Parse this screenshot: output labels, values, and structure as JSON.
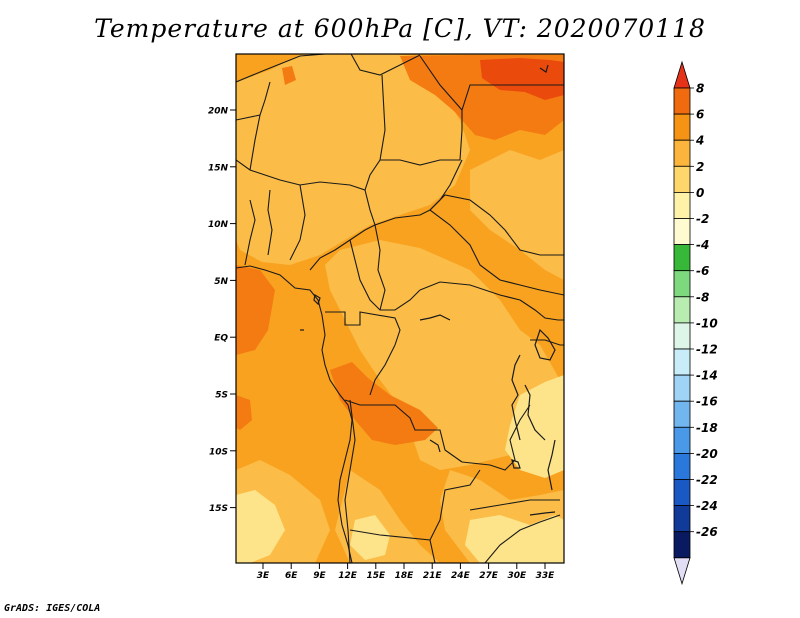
{
  "title": "Temperature at 600hPa [C], VT: 2020070118",
  "credit": "GrADS: IGES/COLA",
  "map": {
    "lat_ticks": [
      "20N",
      "15N",
      "10N",
      "5N",
      "EQ",
      "5S",
      "10S",
      "15S"
    ],
    "lon_ticks": [
      "3E",
      "6E",
      "9E",
      "12E",
      "15E",
      "18E",
      "21E",
      "24E",
      "27E",
      "30E",
      "33E"
    ],
    "field_colors": {
      "le_0": "#fde48a",
      "0_2": "#fbbd48",
      "2_4": "#f9a21f",
      "4_6": "#f47a12",
      "6_8": "#ea4a0c"
    }
  },
  "colorbar": {
    "labels": [
      "8",
      "6",
      "4",
      "2",
      "0",
      "-2",
      "-4",
      "-6",
      "-8",
      "-10",
      "-12",
      "-14",
      "-16",
      "-18",
      "-20",
      "-22",
      "-24",
      "-26"
    ],
    "colors": [
      "#e5331a",
      "#f06a10",
      "#f59315",
      "#fbb43c",
      "#fdd76c",
      "#fef2a8",
      "#fffbd0",
      "#38b838",
      "#7ed87e",
      "#b8ecb0",
      "#def6e8",
      "#c8ecf8",
      "#a0d4f6",
      "#72b6f0",
      "#4a98e8",
      "#2a78dc",
      "#1a58c4",
      "#123a98",
      "#0a1a60"
    ],
    "top_arrow_color": "#e5331a",
    "bottom_arrow_color": "#e2def6"
  }
}
